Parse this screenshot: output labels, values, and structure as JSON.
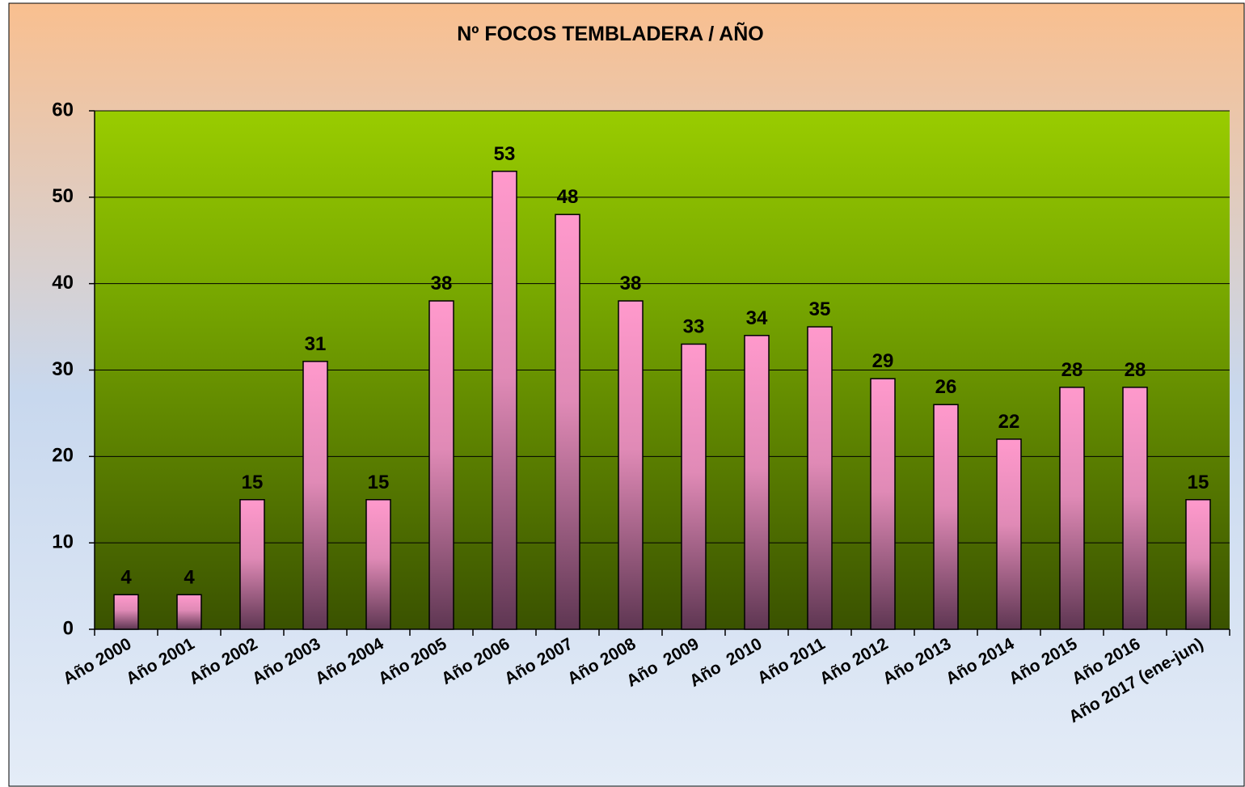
{
  "chart_data": {
    "type": "bar",
    "title": "Nº FOCOS TEMBLADERA / AÑO",
    "categories": [
      "Año 2000",
      "Año 2001",
      "Año 2002",
      "Año 2003",
      "Año 2004",
      "Año 2005",
      "Año 2006",
      "Año 2007",
      "Año 2008",
      "Año  2009",
      "Año  2010",
      "Año 2011",
      "Año 2012",
      "Año 2013",
      "Año 2014",
      "Año 2015",
      "Año 2016",
      "Año 2017 (ene-jun)"
    ],
    "values": [
      4,
      4,
      15,
      31,
      15,
      38,
      53,
      48,
      38,
      33,
      34,
      35,
      29,
      26,
      22,
      28,
      28,
      15
    ],
    "color": "#ff99cc",
    "ylim": [
      0,
      60
    ],
    "yticks": [
      0,
      10,
      20,
      30,
      40,
      50,
      60
    ],
    "grid": true
  }
}
